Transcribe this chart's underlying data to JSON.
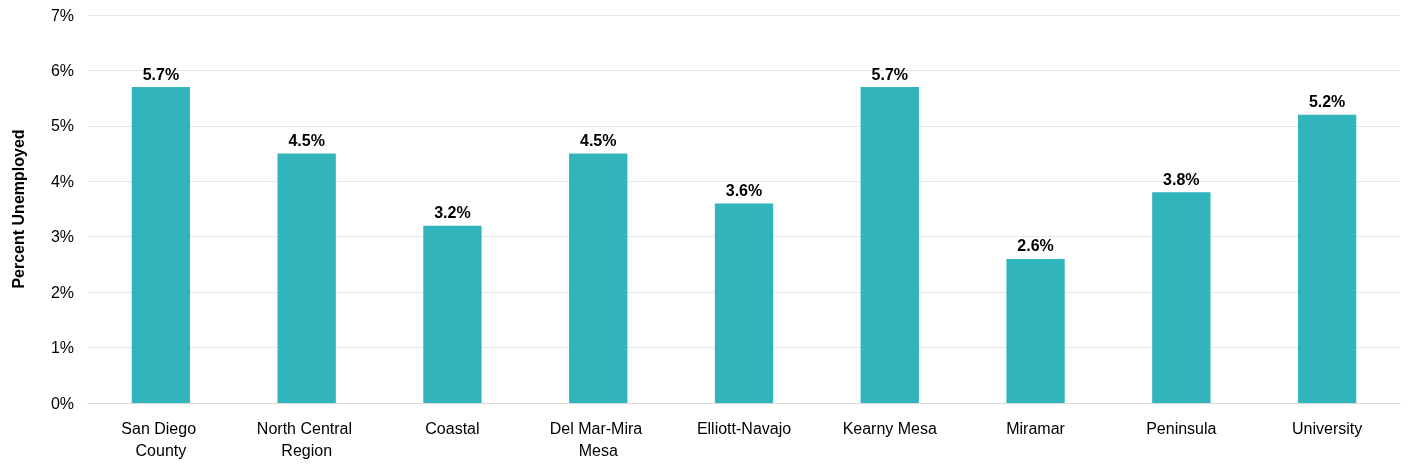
{
  "chart_data": {
    "type": "bar",
    "ylabel": "Percent Unemployed",
    "categories": [
      "San Diego County",
      "North Central Region",
      "Coastal",
      "Del Mar-Mira Mesa",
      "Elliott-Navajo",
      "Kearny Mesa",
      "Miramar",
      "Peninsula",
      "University"
    ],
    "values": [
      5.7,
      4.5,
      3.2,
      4.5,
      3.6,
      5.7,
      2.6,
      3.8,
      5.2
    ],
    "value_labels": [
      "5.7%",
      "4.5%",
      "3.2%",
      "4.5%",
      "3.6%",
      "5.7%",
      "2.6%",
      "3.8%",
      "5.2%"
    ],
    "color": "#31b4bb",
    "ylim": [
      0,
      7
    ],
    "yticks": [
      {
        "value": 0,
        "label": "0%"
      },
      {
        "value": 1,
        "label": "1%"
      },
      {
        "value": 2,
        "label": "2%"
      },
      {
        "value": 3,
        "label": "3%"
      },
      {
        "value": 4,
        "label": "4%"
      },
      {
        "value": 5,
        "label": "5%"
      },
      {
        "value": 6,
        "label": "6%"
      },
      {
        "value": 7,
        "label": "7%"
      }
    ],
    "grid": "y"
  }
}
